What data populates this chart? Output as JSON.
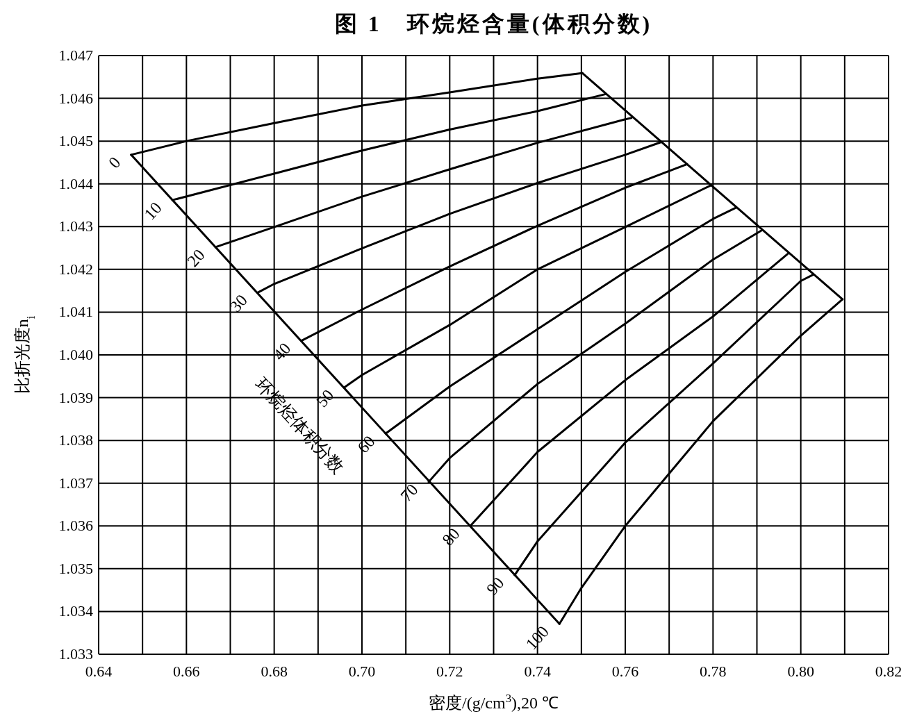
{
  "chart_data": {
    "type": "line",
    "title": "图 1　环烷烃含量(体积分数)",
    "xlabel": "密度/(g/cm$^{3}$),20 ℃",
    "ylabel": "比折光度n$_{i}$",
    "annotations": [
      "环烷烃体积分数"
    ],
    "xlim": [
      0.64,
      0.82
    ],
    "ylim": [
      1.033,
      1.047
    ],
    "xticks": [
      0.64,
      {
        "value": 0.65,
        "label": null
      },
      0.66,
      {
        "value": 0.67,
        "label": null
      },
      0.68,
      {
        "value": 0.69,
        "label": null
      },
      {
        "value": 0.7,
        "label": "0.70"
      },
      {
        "value": 0.71,
        "label": null
      },
      0.72,
      {
        "value": 0.73,
        "label": null
      },
      0.74,
      {
        "value": 0.75,
        "label": null
      },
      0.76,
      {
        "value": 0.77,
        "label": null
      },
      0.78,
      {
        "value": 0.79,
        "label": null
      },
      {
        "value": 0.8,
        "label": "0.80"
      },
      {
        "value": 0.81,
        "label": null
      },
      0.82
    ],
    "yticks": [
      1.033,
      1.034,
      1.035,
      1.036,
      1.037,
      1.038,
      1.039,
      {
        "value": 1.04,
        "label": "1.040"
      },
      1.041,
      1.042,
      1.043,
      1.044,
      1.045,
      1.046,
      1.047
    ],
    "grid": true,
    "marker": "none",
    "line_style": "solid",
    "series": [
      {
        "name": "0",
        "color": "#000000",
        "x": [
          0.6474,
          0.66,
          0.68,
          0.7,
          0.72,
          0.74,
          0.7502
        ],
        "values": [
          1.04468,
          1.045,
          1.04542,
          1.04583,
          1.04614,
          1.04646,
          1.04659
        ]
      },
      {
        "name": "10",
        "color": "#000000",
        "x": [
          0.6568,
          0.68,
          0.7,
          0.72,
          0.74,
          0.7556
        ],
        "values": [
          1.04362,
          1.04424,
          1.04478,
          1.04527,
          1.0457,
          1.0461
        ]
      },
      {
        "name": "20",
        "color": "#000000",
        "x": [
          0.6666,
          0.68,
          0.7,
          0.72,
          0.74,
          0.76,
          0.7614
        ],
        "values": [
          1.04252,
          1.04299,
          1.0437,
          1.04434,
          1.04496,
          1.04551,
          1.04554
        ]
      },
      {
        "name": "30",
        "color": "#000000",
        "x": [
          0.6763,
          0.68,
          0.7,
          0.72,
          0.74,
          0.76,
          0.768
        ],
        "values": [
          1.04146,
          1.04166,
          1.04249,
          1.0433,
          1.04402,
          1.04468,
          1.04497
        ]
      },
      {
        "name": "40",
        "color": "#000000",
        "x": [
          0.6862,
          0.7,
          0.72,
          0.74,
          0.76,
          0.7741
        ],
        "values": [
          1.04033,
          1.04106,
          1.04207,
          1.04302,
          1.04391,
          1.04446
        ]
      },
      {
        "name": "50",
        "color": "#000000",
        "x": [
          0.696,
          0.7,
          0.72,
          0.74,
          0.76,
          0.7796
        ],
        "values": [
          1.03924,
          1.03953,
          1.0407,
          1.042,
          1.04299,
          1.04397
        ]
      },
      {
        "name": "60",
        "color": "#000000",
        "x": [
          0.7054,
          0.72,
          0.74,
          0.76,
          0.78,
          0.7852
        ],
        "values": [
          1.03816,
          1.03926,
          1.0406,
          1.04194,
          1.04318,
          1.04344
        ]
      },
      {
        "name": "70",
        "color": "#000000",
        "x": [
          0.7152,
          0.72,
          0.74,
          0.76,
          0.78,
          0.7912
        ],
        "values": [
          1.03703,
          1.03759,
          1.03932,
          1.04073,
          1.04223,
          1.04292
        ]
      },
      {
        "name": "80",
        "color": "#000000",
        "x": [
          0.7247,
          0.74,
          0.76,
          0.78,
          0.797
        ],
        "values": [
          1.036,
          1.03773,
          1.03941,
          1.0409,
          1.04236
        ]
      },
      {
        "name": "90",
        "color": "#000000",
        "x": [
          0.7348,
          0.74,
          0.76,
          0.78,
          0.8,
          0.8027
        ],
        "values": [
          1.03485,
          1.03564,
          1.03795,
          1.0398,
          1.04173,
          1.04187
        ]
      },
      {
        "name": "100",
        "color": "#000000",
        "x": [
          0.745,
          0.75,
          0.76,
          0.78,
          0.8,
          0.8095
        ],
        "values": [
          1.03371,
          1.03455,
          1.036,
          1.03845,
          1.04045,
          1.0413
        ]
      },
      {
        "color": "#000000",
        "x": [
          0.6474,
          0.745
        ],
        "values": [
          1.04468,
          1.03371
        ]
      },
      {
        "color": "#000000",
        "x": [
          0.7502,
          0.8095
        ],
        "values": [
          1.04659,
          1.0413
        ]
      }
    ]
  }
}
